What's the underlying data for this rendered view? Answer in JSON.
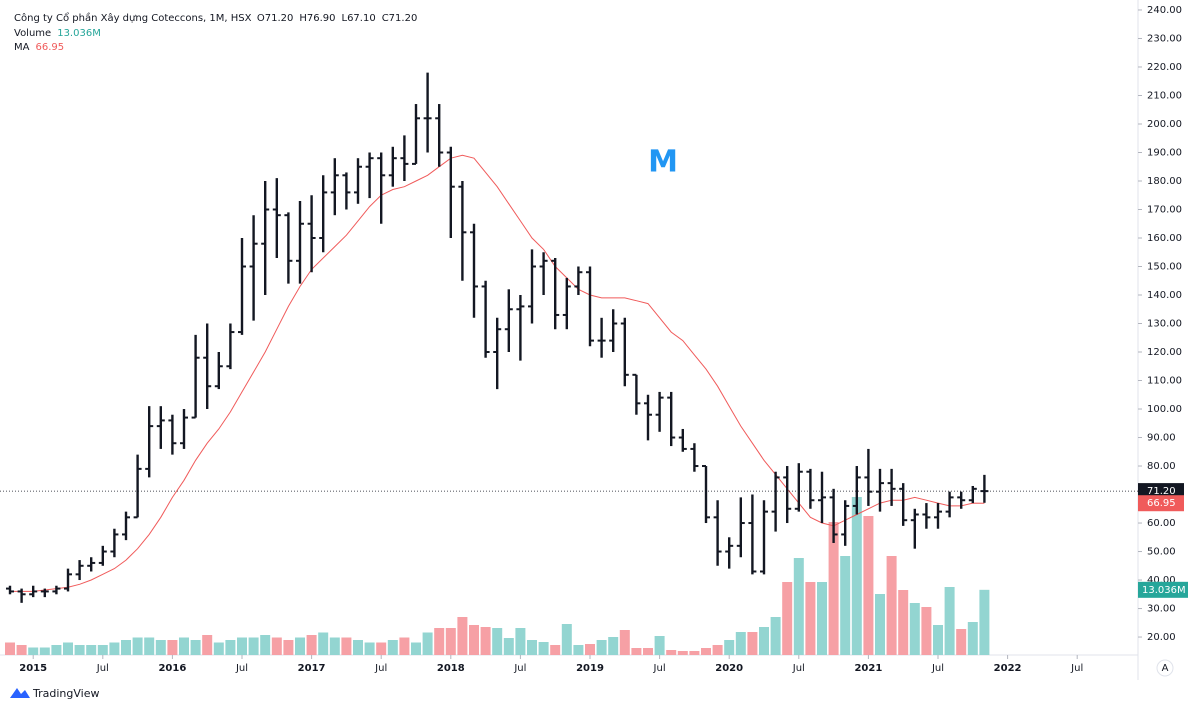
{
  "chart_data": {
    "type": "ohlc",
    "title": "Công ty Cổ phần Xây dựng Coteccons, 1M, HSX",
    "last_bar_labels": [
      "O71.20",
      "H76.90",
      "L67.10",
      "C71.20"
    ],
    "close_label": "71.20",
    "annotation": "M",
    "branding": "TradingView",
    "auto_button": "A",
    "bar_color": "#131722",
    "up_color": "#93d5d1",
    "down_color": "#f6a0a5",
    "x": [
      "2014-11",
      "2014-12",
      "2015-01",
      "2015-02",
      "2015-03",
      "2015-04",
      "2015-05",
      "2015-06",
      "2015-07",
      "2015-08",
      "2015-09",
      "2015-10",
      "2015-11",
      "2015-12",
      "2016-01",
      "2016-02",
      "2016-03",
      "2016-04",
      "2016-05",
      "2016-06",
      "2016-07",
      "2016-08",
      "2016-09",
      "2016-10",
      "2016-11",
      "2016-12",
      "2017-01",
      "2017-02",
      "2017-03",
      "2017-04",
      "2017-05",
      "2017-06",
      "2017-07",
      "2017-08",
      "2017-09",
      "2017-10",
      "2017-11",
      "2017-12",
      "2018-01",
      "2018-02",
      "2018-03",
      "2018-04",
      "2018-05",
      "2018-06",
      "2018-07",
      "2018-08",
      "2018-09",
      "2018-10",
      "2018-11",
      "2018-12",
      "2019-01",
      "2019-02",
      "2019-03",
      "2019-04",
      "2019-05",
      "2019-06",
      "2019-07",
      "2019-08",
      "2019-09",
      "2019-10",
      "2019-11",
      "2019-12",
      "2020-01",
      "2020-02",
      "2020-03",
      "2020-04",
      "2020-05",
      "2020-06",
      "2020-07",
      "2020-08",
      "2020-09",
      "2020-10",
      "2020-11",
      "2020-12",
      "2021-01",
      "2021-02",
      "2021-03",
      "2021-04",
      "2021-05",
      "2021-06",
      "2021-07",
      "2021-08",
      "2021-09",
      "2021-10",
      "2021-11"
    ],
    "ohlc": [
      [
        37,
        38,
        35,
        36
      ],
      [
        36,
        37,
        32,
        35
      ],
      [
        35,
        38,
        34,
        36
      ],
      [
        36,
        37,
        34,
        36
      ],
      [
        36,
        38,
        35,
        37
      ],
      [
        37,
        44,
        36,
        42
      ],
      [
        42,
        47,
        40,
        45
      ],
      [
        45,
        48,
        43,
        46
      ],
      [
        46,
        52,
        45,
        50
      ],
      [
        50,
        58,
        48,
        56
      ],
      [
        56,
        64,
        54,
        62
      ],
      [
        62,
        84,
        62,
        79
      ],
      [
        79,
        101,
        76,
        94
      ],
      [
        94,
        101,
        86,
        96
      ],
      [
        96,
        98,
        84,
        88
      ],
      [
        88,
        100,
        86,
        97
      ],
      [
        97,
        126,
        97,
        118
      ],
      [
        118,
        130,
        100,
        108
      ],
      [
        108,
        120,
        107,
        115
      ],
      [
        115,
        130,
        114,
        127
      ],
      [
        127,
        160,
        126,
        150
      ],
      [
        150,
        168,
        131,
        158
      ],
      [
        158,
        180,
        140,
        170
      ],
      [
        170,
        181,
        153,
        168
      ],
      [
        168,
        169,
        144,
        152
      ],
      [
        152,
        173,
        144,
        165
      ],
      [
        165,
        175,
        148,
        160
      ],
      [
        160,
        182,
        155,
        176
      ],
      [
        176,
        188,
        168,
        182
      ],
      [
        182,
        183,
        170,
        176
      ],
      [
        176,
        188,
        172,
        185
      ],
      [
        185,
        190,
        174,
        188
      ],
      [
        188,
        190,
        165,
        182
      ],
      [
        182,
        192,
        178,
        188
      ],
      [
        188,
        196,
        180,
        186
      ],
      [
        186,
        207,
        186,
        202
      ],
      [
        202,
        218,
        190,
        202
      ],
      [
        202,
        207,
        185,
        190
      ],
      [
        190,
        192,
        160,
        178
      ],
      [
        178,
        180,
        145,
        162
      ],
      [
        162,
        165,
        132,
        143
      ],
      [
        143,
        145,
        118,
        120
      ],
      [
        120,
        132,
        107,
        128
      ],
      [
        128,
        142,
        120,
        135
      ],
      [
        135,
        140,
        117,
        136
      ],
      [
        136,
        156,
        130,
        150
      ],
      [
        150,
        155,
        140,
        152
      ],
      [
        152,
        153,
        128,
        133
      ],
      [
        133,
        146,
        128,
        143
      ],
      [
        143,
        150,
        140,
        148
      ],
      [
        148,
        150,
        122,
        124
      ],
      [
        124,
        132,
        118,
        124
      ],
      [
        124,
        135,
        120,
        130
      ],
      [
        130,
        132,
        108,
        112
      ],
      [
        112,
        112,
        98,
        102
      ],
      [
        102,
        105,
        89,
        98
      ],
      [
        98,
        106,
        92,
        104
      ],
      [
        104,
        106,
        87,
        90
      ],
      [
        90,
        93,
        85,
        86
      ],
      [
        86,
        88,
        78,
        80
      ],
      [
        80,
        80,
        60,
        62
      ],
      [
        62,
        68,
        45,
        50
      ],
      [
        50,
        55,
        44,
        52
      ],
      [
        52,
        69,
        48,
        60
      ],
      [
        60,
        70,
        42,
        43
      ],
      [
        43,
        68,
        42,
        64
      ],
      [
        64,
        78,
        57,
        76
      ],
      [
        76,
        80,
        60,
        65
      ],
      [
        65,
        81,
        64,
        78
      ],
      [
        78,
        79,
        65,
        68
      ],
      [
        68,
        78,
        60,
        69
      ],
      [
        69,
        72,
        53,
        56
      ],
      [
        56,
        68,
        52,
        66
      ],
      [
        66,
        80,
        63,
        76
      ],
      [
        76,
        86,
        66,
        71
      ],
      [
        71,
        79,
        64,
        74
      ],
      [
        74,
        79,
        66,
        72
      ],
      [
        72,
        74,
        59,
        61
      ],
      [
        61,
        65,
        51,
        63
      ],
      [
        63,
        67,
        58,
        62
      ],
      [
        62,
        67,
        58,
        64
      ],
      [
        64,
        71,
        62,
        69
      ],
      [
        69,
        71,
        65,
        68
      ],
      [
        68,
        73,
        67,
        72
      ],
      [
        71.2,
        76.9,
        67.1,
        71.2
      ]
    ],
    "volume": {
      "name": "Volume",
      "last_label": "13.036M",
      "label_color": "#26a69a",
      "values": [
        2.5,
        2.0,
        1.5,
        1.5,
        2.0,
        2.5,
        2.0,
        2.0,
        2.0,
        2.5,
        3.0,
        3.5,
        3.5,
        3.0,
        3.0,
        3.5,
        3.0,
        4.0,
        2.5,
        3.0,
        3.5,
        3.5,
        4.0,
        3.5,
        3.0,
        3.5,
        4.0,
        4.5,
        3.5,
        3.5,
        3.0,
        2.5,
        2.5,
        3.0,
        3.5,
        2.5,
        4.5,
        5.4,
        5.4,
        7.6,
        6.0,
        5.6,
        5.4,
        3.4,
        5.4,
        3.0,
        2.6,
        2.0,
        6.2,
        2.0,
        2.2,
        3.0,
        3.6,
        5.0,
        1.4,
        1.4,
        3.8,
        1.0,
        0.8,
        0.8,
        1.4,
        2.0,
        3.0,
        4.6,
        4.6,
        5.6,
        7.6,
        14.6,
        19.4,
        14.6,
        14.6,
        26.6,
        19.8,
        31.6,
        27.8,
        12.2,
        19.8,
        13.0,
        10.4,
        9.6,
        6.0,
        13.6,
        5.2,
        6.6,
        13.036
      ]
    },
    "ma": {
      "name": "MA",
      "last_label": "66.95",
      "color": "#f05b5b",
      "values": [
        36,
        36,
        36,
        36.5,
        37,
        37.5,
        38.5,
        40,
        42,
        44,
        47,
        51,
        56,
        62,
        69,
        75,
        82,
        88,
        93,
        99,
        106,
        113,
        120,
        128,
        136,
        143,
        149,
        153,
        157,
        161,
        166,
        171,
        175,
        177,
        178,
        180,
        182,
        185,
        188,
        189,
        188,
        183,
        178,
        172,
        166,
        160,
        156,
        150,
        146,
        142,
        140,
        139,
        139,
        139,
        138,
        137,
        132,
        127,
        124,
        119,
        114,
        108,
        101,
        94,
        88,
        82,
        77,
        72,
        67,
        62,
        60,
        59,
        61,
        63,
        65,
        67,
        68,
        68,
        69,
        68,
        67,
        66,
        66,
        67,
        66.95
      ]
    },
    "ylim": [
      13.7,
      243.5
    ],
    "yticks": [
      {
        "value": 20,
        "label": "20.00"
      },
      {
        "value": 30,
        "label": "30.00"
      },
      {
        "value": 40,
        "label": "40.00"
      },
      {
        "value": 50,
        "label": "50.00"
      },
      {
        "value": 60,
        "label": "60.00"
      },
      {
        "value": 70,
        "label": "70.00"
      },
      {
        "value": 80,
        "label": "80.00"
      },
      {
        "value": 90,
        "label": "90.00"
      },
      {
        "value": 100,
        "label": "100.00"
      },
      {
        "value": 110,
        "label": "110.00"
      },
      {
        "value": 120,
        "label": "120.00"
      },
      {
        "value": 130,
        "label": "130.00"
      },
      {
        "value": 140,
        "label": "140.00"
      },
      {
        "value": 150,
        "label": "150.00"
      },
      {
        "value": 160,
        "label": "160.00"
      },
      {
        "value": 170,
        "label": "170.00"
      },
      {
        "value": 180,
        "label": "180.00"
      },
      {
        "value": 190,
        "label": "190.00"
      },
      {
        "value": 200,
        "label": "200.00"
      },
      {
        "value": 210,
        "label": "210.00"
      },
      {
        "value": 220,
        "label": "220.00"
      },
      {
        "value": 230,
        "label": "230.00"
      },
      {
        "value": 240,
        "label": "240.00"
      }
    ],
    "xticks": [
      {
        "value": "2015-01",
        "label": "2015"
      },
      {
        "value": "2015-07",
        "label": "Jul"
      },
      {
        "value": "2016-01",
        "label": "2016"
      },
      {
        "value": "2016-07",
        "label": "Jul"
      },
      {
        "value": "2017-01",
        "label": "2017"
      },
      {
        "value": "2017-07",
        "label": "Jul"
      },
      {
        "value": "2018-01",
        "label": "2018"
      },
      {
        "value": "2018-07",
        "label": "Jul"
      },
      {
        "value": "2019-01",
        "label": "2019"
      },
      {
        "value": "2019-07",
        "label": "Jul"
      },
      {
        "value": "2020-01",
        "label": "2020"
      },
      {
        "value": "2020-07",
        "label": "Jul"
      },
      {
        "value": "2021-01",
        "label": "2021"
      },
      {
        "value": "2021-07",
        "label": "Jul"
      },
      {
        "value": "2022-01",
        "label": "2022"
      },
      {
        "value": "2022-07",
        "label": "Jul"
      }
    ]
  }
}
